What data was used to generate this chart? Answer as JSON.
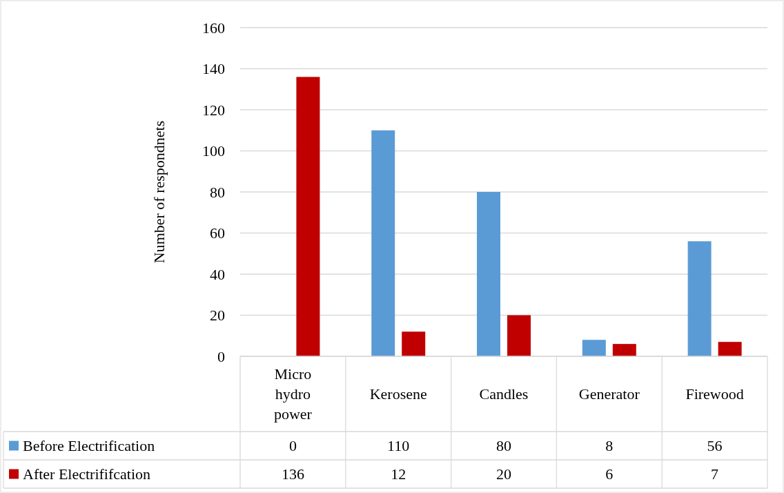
{
  "chart_data": {
    "type": "bar",
    "ylabel": "Number of respondnets",
    "categories": [
      "Micro hydro power",
      "Kerosene",
      "Candles",
      "Generator",
      "Firewood"
    ],
    "series": [
      {
        "name": "Before Electrification",
        "color": "#5b9bd5",
        "values": [
          0,
          110,
          80,
          8,
          56
        ]
      },
      {
        "name": "After Electrififcation",
        "color": "#c00000",
        "values": [
          136,
          12,
          20,
          6,
          7
        ]
      }
    ],
    "ylim": [
      0,
      160
    ],
    "yticks": [
      0,
      20,
      40,
      60,
      80,
      100,
      120,
      140,
      160
    ],
    "grid": "y",
    "legend": "bottom left",
    "data_labels": true
  }
}
